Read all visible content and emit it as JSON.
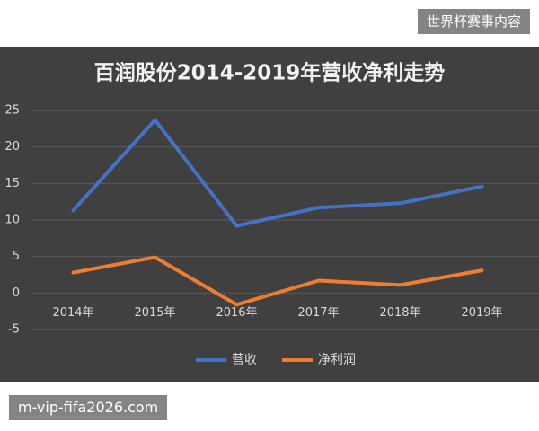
{
  "overlay": {
    "badge": "世界杯赛事内容",
    "url": "m-vip-fifa2026.com"
  },
  "chart_data": {
    "type": "line",
    "title": "百润股份2014-2019年营收净利走势",
    "categories": [
      "2014年",
      "2015年",
      "2016年",
      "2017年",
      "2018年",
      "2019年"
    ],
    "series": [
      {
        "name": "营收",
        "color": "#4472c4",
        "values": [
          11.3,
          23.7,
          9.2,
          11.7,
          12.3,
          14.6
        ]
      },
      {
        "name": "净利润",
        "color": "#ed7d31",
        "values": [
          2.8,
          4.9,
          -1.6,
          1.7,
          1.1,
          3.1
        ]
      }
    ],
    "ylim": [
      -5,
      25
    ],
    "yticks": [
      -5,
      0,
      5,
      10,
      15,
      20,
      25
    ],
    "grid": true,
    "legend": "bottom"
  }
}
